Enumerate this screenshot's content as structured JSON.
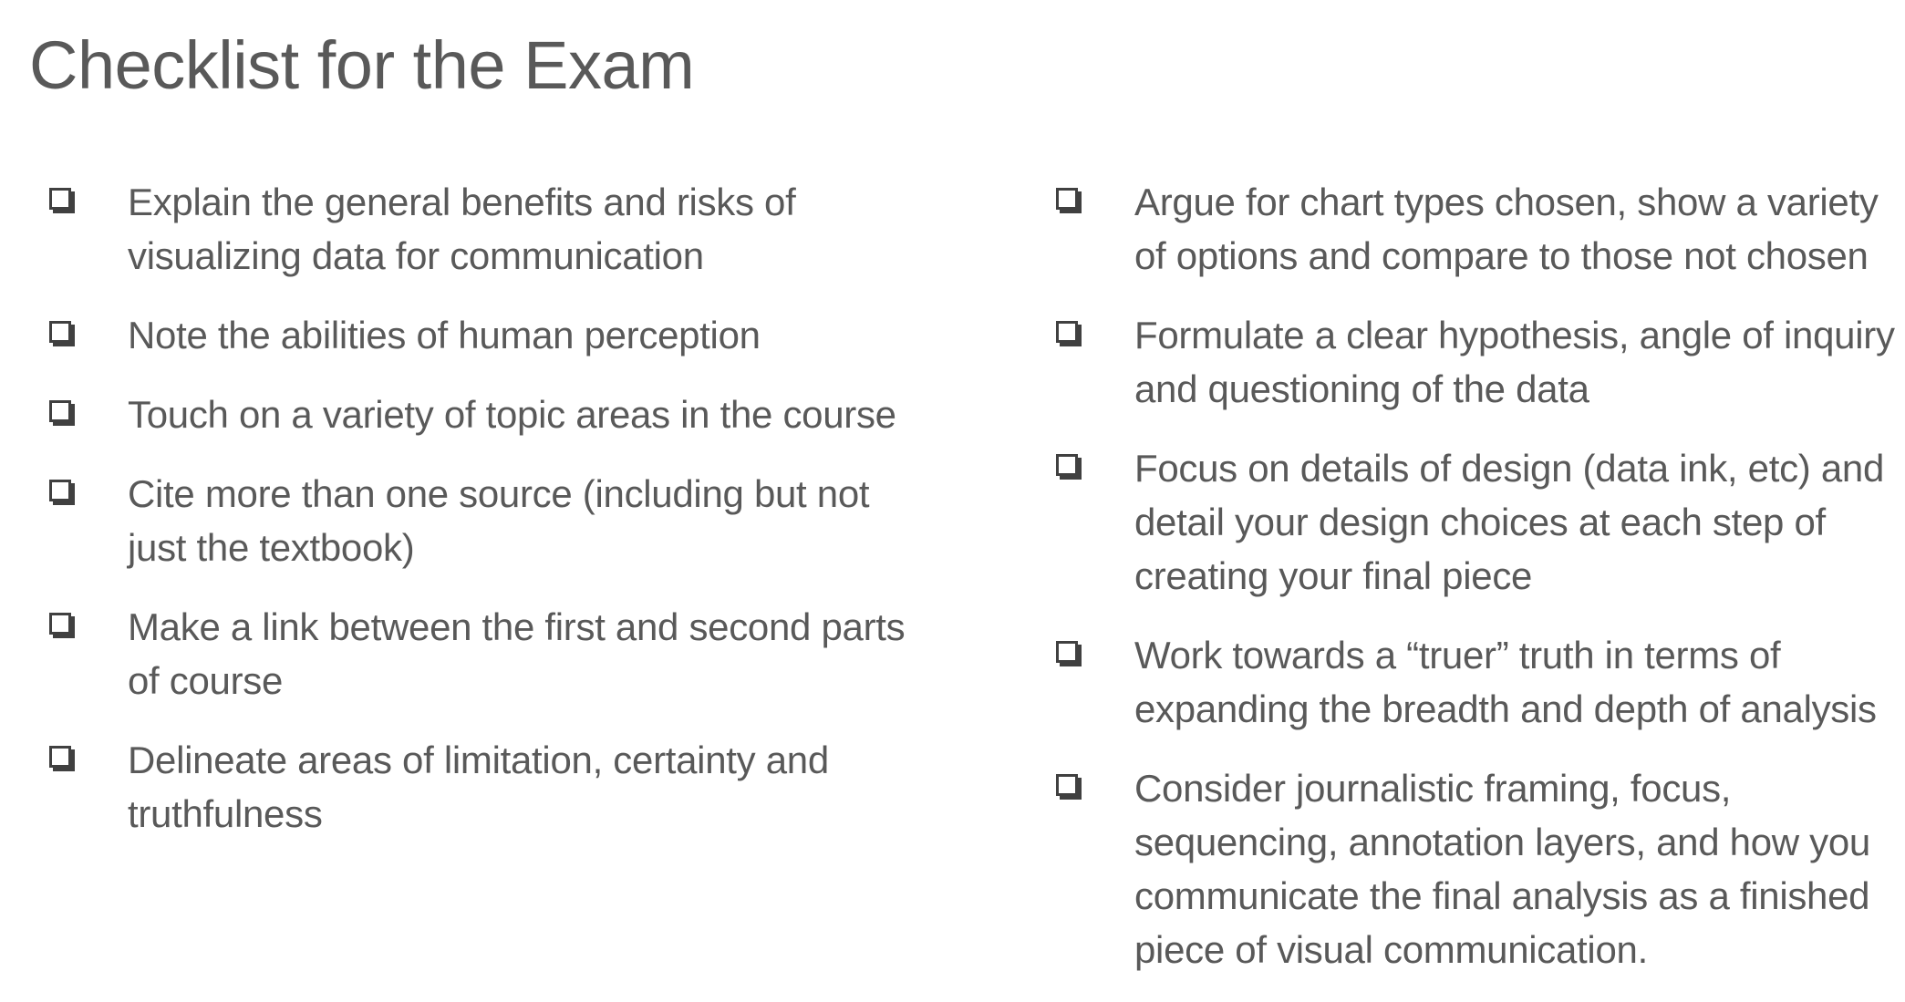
{
  "title": "Checklist for the Exam",
  "left_items": [
    {
      "text": "Explain the general benefits and risks of visualizing data for communication"
    },
    {
      "text": "Note the abilities of human perception"
    },
    {
      "text": "Touch on a variety of topic areas in the course"
    },
    {
      "text": "Cite more than one source (including but not just the textbook)"
    },
    {
      "text": "Make a link between the first and second parts of course"
    },
    {
      "text": "Delineate areas of limitation, certainty and truthfulness"
    }
  ],
  "right_items": [
    {
      "text": "Argue for chart types chosen, show a variety of options and compare to those not chosen"
    },
    {
      "text": "Formulate a clear hypothesis, angle of inquiry and questioning of the data"
    },
    {
      "text": "Focus on details of design (data ink, etc) and detail your design choices at each step of creating your final piece"
    },
    {
      "text": "Work towards a “truer” truth in terms of expanding the breadth and depth of analysis"
    },
    {
      "text": "Consider journalistic framing, focus, sequencing, annotation layers, and how you communicate the final analysis as a finished piece of visual communication."
    }
  ],
  "icons": {
    "bullet": "checkbox-icon"
  },
  "colors": {
    "text": "#595959",
    "checkbox": "#404040",
    "background": "#ffffff"
  }
}
